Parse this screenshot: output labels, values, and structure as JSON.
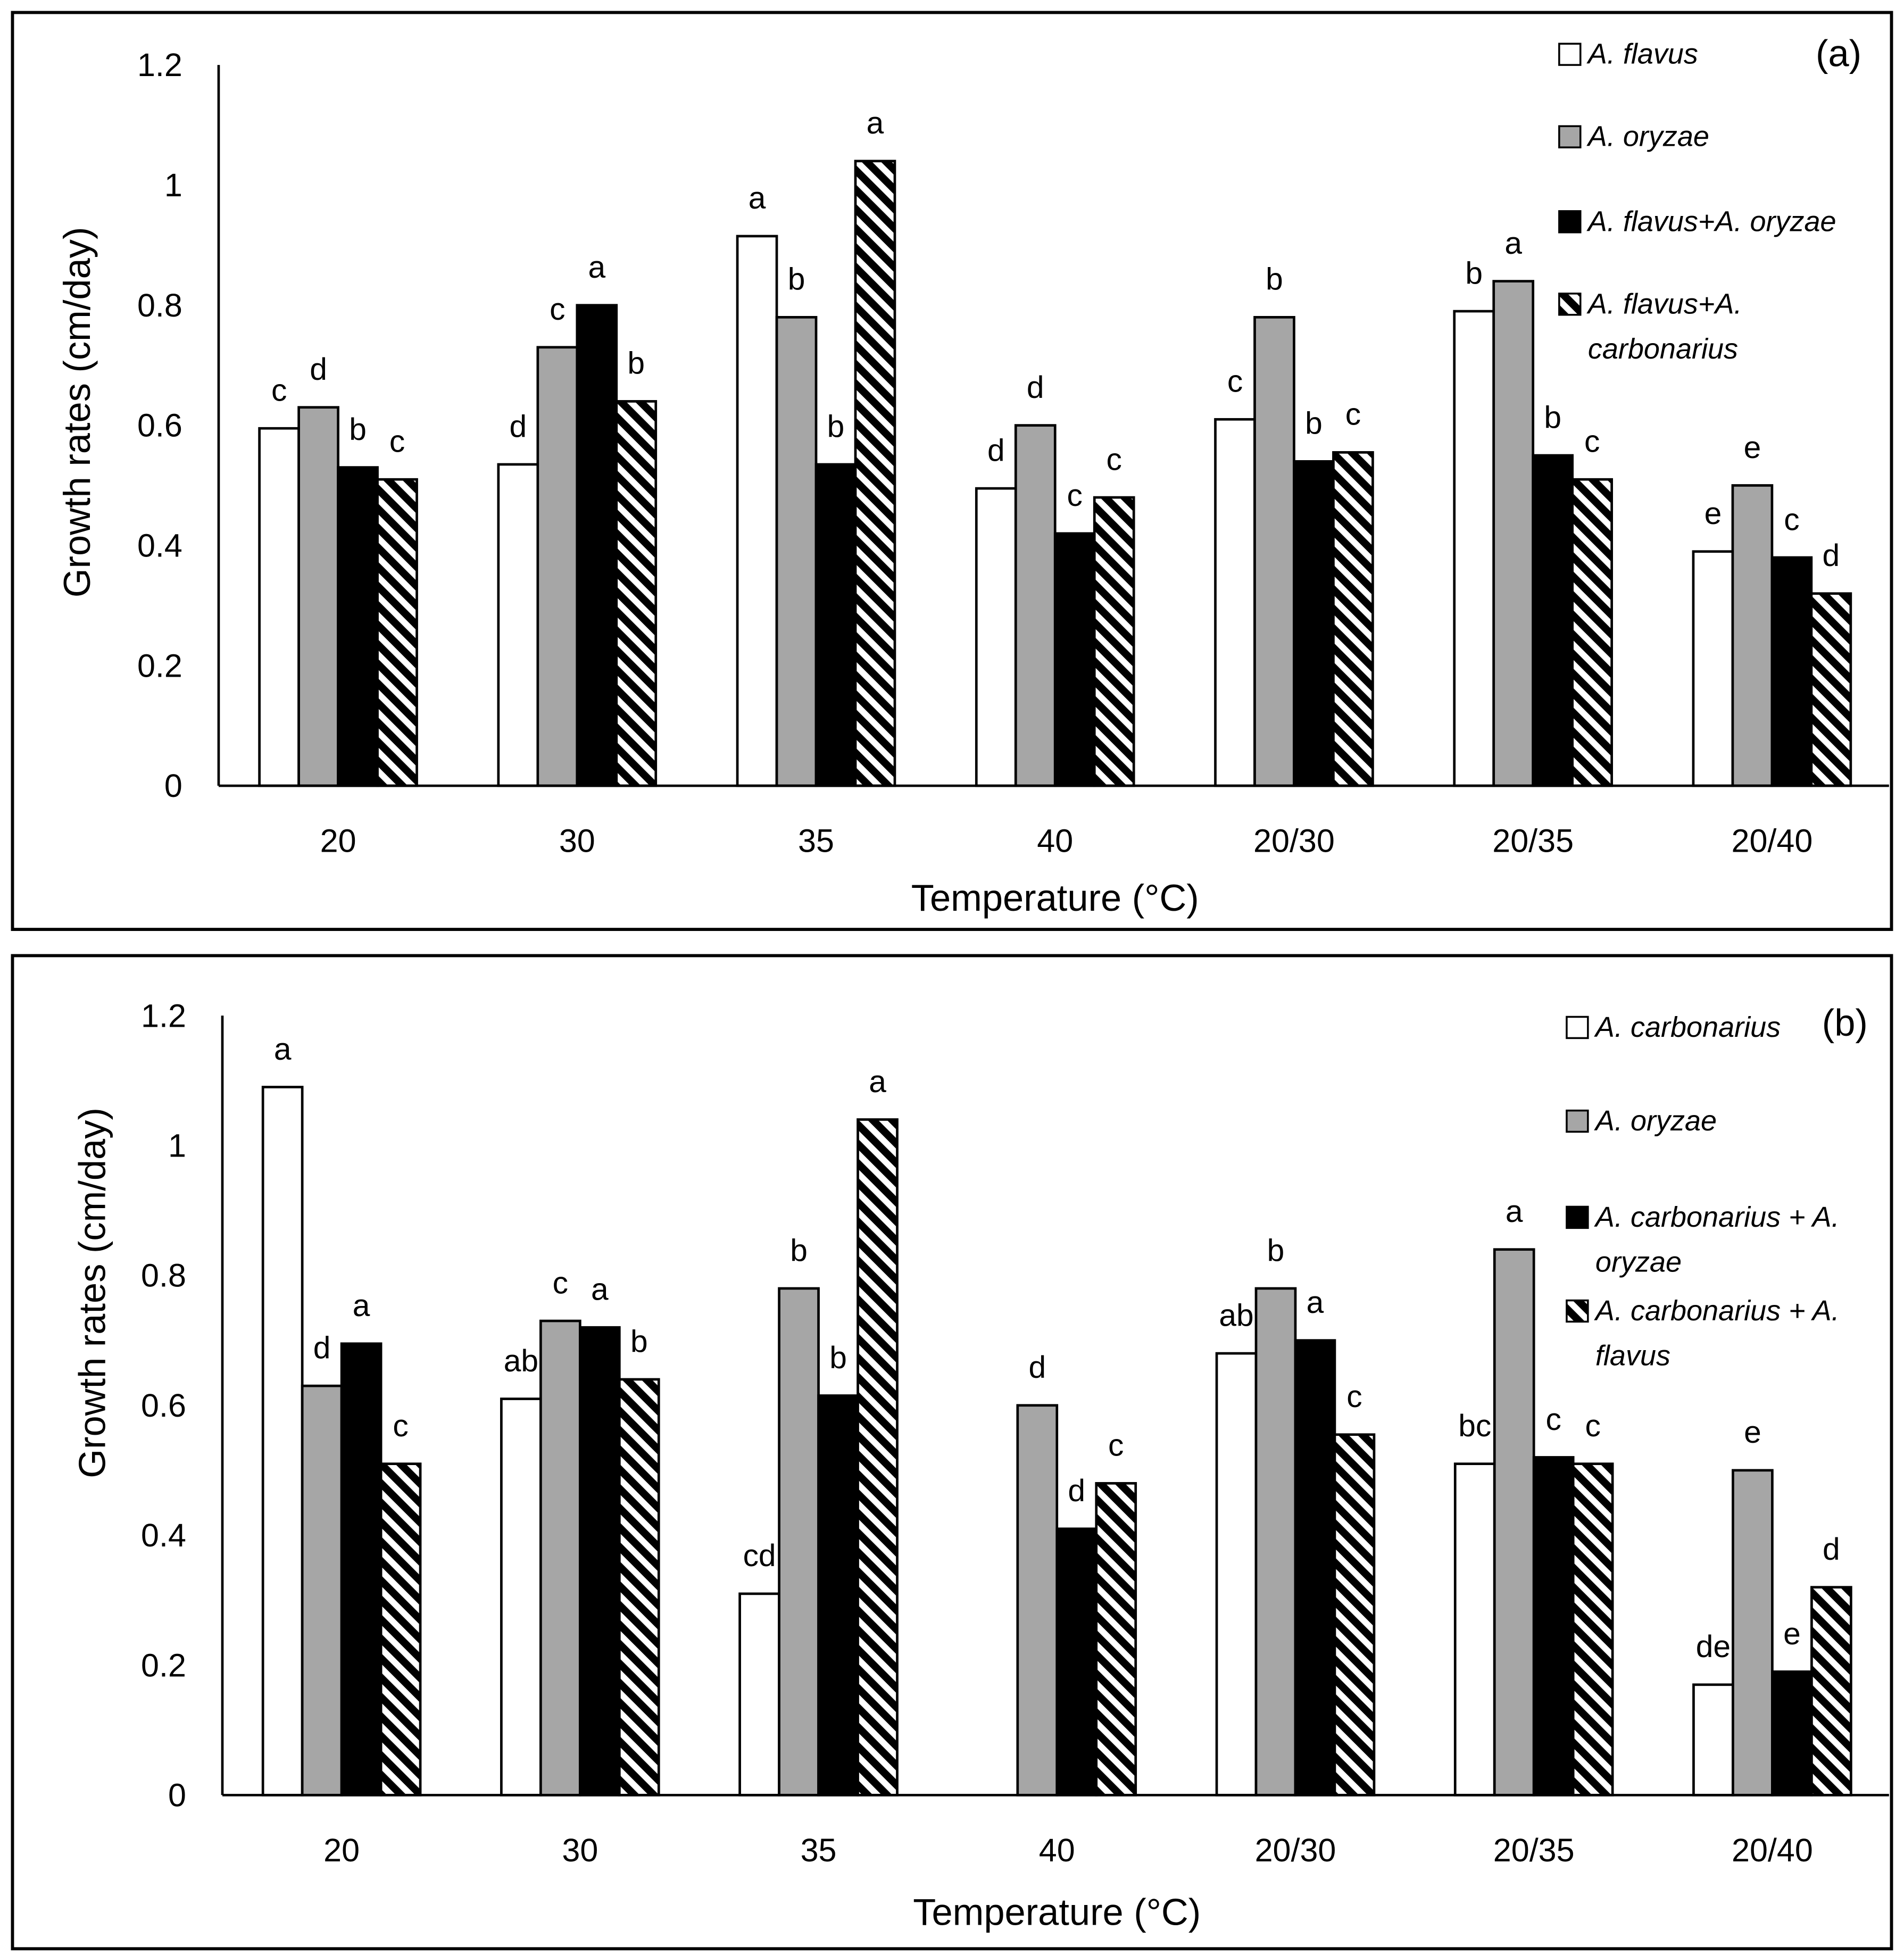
{
  "chart_data": [
    {
      "type": "bar",
      "panel_label": "(a)",
      "xlabel": "Temperature (°C)",
      "ylabel": "Growth rates (cm/day)",
      "ylim": [
        0,
        1.2
      ],
      "yticks": [
        "0",
        "0.2",
        "0.4",
        "0.6",
        "0.8",
        "1",
        "1.2"
      ],
      "grid": false,
      "legend_position": "top-right",
      "categories": [
        "20",
        "30",
        "35",
        "40",
        "20/30",
        "20/35",
        "20/40"
      ],
      "series": [
        {
          "label_lines": [
            "A. flavus"
          ],
          "color": "#ffffff",
          "hatched": false,
          "values": [
            0.595,
            0.535,
            0.915,
            0.495,
            0.61,
            0.79,
            0.39
          ],
          "letters": [
            "c",
            "d",
            "a",
            "d",
            "c",
            "b",
            "e"
          ]
        },
        {
          "label_lines": [
            "A. oryzae"
          ],
          "color": "#a6a6a6",
          "hatched": false,
          "values": [
            0.63,
            0.73,
            0.78,
            0.6,
            0.78,
            0.84,
            0.5
          ],
          "letters": [
            "d",
            "c",
            "b",
            "d",
            "b",
            "a",
            "e"
          ]
        },
        {
          "label_lines": [
            "A. flavus+A. oryzae"
          ],
          "color": "#000000",
          "hatched": false,
          "values": [
            0.53,
            0.8,
            0.535,
            0.42,
            0.54,
            0.55,
            0.38
          ],
          "letters": [
            "b",
            "a",
            "b",
            "c",
            "b",
            "b",
            "c"
          ]
        },
        {
          "label_lines": [
            "A. flavus+A.",
            "carbonarius"
          ],
          "color": "#000000",
          "hatched": true,
          "values": [
            0.51,
            0.64,
            1.04,
            0.48,
            0.555,
            0.51,
            0.32
          ],
          "letters": [
            "c",
            "b",
            "a",
            "c",
            "c",
            "c",
            "d"
          ]
        }
      ]
    },
    {
      "type": "bar",
      "panel_label": "(b)",
      "xlabel": "Temperature (°C)",
      "ylabel": "Growth rates (cm/day)",
      "ylim": [
        0,
        1.2
      ],
      "yticks": [
        "0",
        "0.2",
        "0.4",
        "0.6",
        "0.8",
        "1",
        "1.2"
      ],
      "grid": false,
      "legend_position": "top-right",
      "categories": [
        "20",
        "30",
        "35",
        "40",
        "20/30",
        "20/35",
        "20/40"
      ],
      "series": [
        {
          "label_lines": [
            "A. carbonarius"
          ],
          "color": "#ffffff",
          "hatched": false,
          "values": [
            1.09,
            0.61,
            0.31,
            0,
            0.68,
            0.51,
            0.17
          ],
          "letters": [
            "a",
            "ab",
            "cd",
            null,
            "ab",
            "bc",
            "de"
          ]
        },
        {
          "label_lines": [
            "A. oryzae"
          ],
          "color": "#a6a6a6",
          "hatched": false,
          "values": [
            0.63,
            0.73,
            0.78,
            0.6,
            0.78,
            0.84,
            0.5
          ],
          "letters": [
            "d",
            "c",
            "b",
            "d",
            "b",
            "a",
            "e"
          ]
        },
        {
          "label_lines": [
            "A. carbonarius + A.",
            "oryzae"
          ],
          "color": "#000000",
          "hatched": false,
          "values": [
            0.695,
            0.72,
            0.615,
            0.41,
            0.7,
            0.52,
            0.19
          ],
          "letters": [
            "a",
            "a",
            "b",
            "d",
            "a",
            "c",
            "e"
          ]
        },
        {
          "label_lines": [
            "A. carbonarius + A.",
            "flavus"
          ],
          "color": "#000000",
          "hatched": true,
          "values": [
            0.51,
            0.64,
            1.04,
            0.48,
            0.555,
            0.51,
            0.32
          ],
          "letters": [
            "c",
            "b",
            "a",
            "c",
            "c",
            "c",
            "d"
          ]
        }
      ]
    }
  ]
}
